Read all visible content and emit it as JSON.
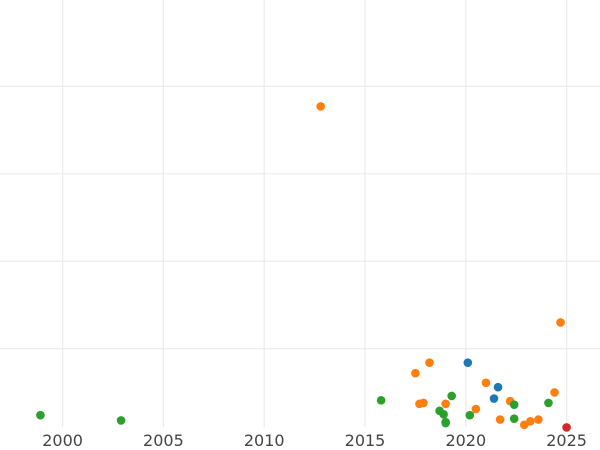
{
  "chart_data": {
    "type": "scatter",
    "title": "",
    "xlabel": "",
    "ylabel": "",
    "grid": true,
    "legend": "none",
    "xlim": [
      1997,
      2026.4
    ],
    "ylim": [
      -0.1,
      4.7
    ],
    "x_ticks": [
      2000,
      2005,
      2010,
      2015,
      2020,
      2025
    ],
    "x_tick_labels": [
      "2000",
      "2005",
      "2010",
      "2015",
      "2020",
      "2025"
    ],
    "y_grid_values": [
      0.8,
      1.8,
      2.8,
      3.8
    ],
    "series": [
      {
        "color": "#ff7f0e",
        "points": [
          {
            "x": 2012.8,
            "y": 3.57
          },
          {
            "x": 2017.5,
            "y": 0.52
          },
          {
            "x": 2018.2,
            "y": 0.64
          },
          {
            "x": 2017.7,
            "y": 0.17
          },
          {
            "x": 2017.9,
            "y": 0.18
          },
          {
            "x": 2019.0,
            "y": 0.17
          },
          {
            "x": 2020.5,
            "y": 0.11
          },
          {
            "x": 2021.0,
            "y": 0.41
          },
          {
            "x": 2021.7,
            "y": -0.01
          },
          {
            "x": 2022.2,
            "y": 0.2
          },
          {
            "x": 2022.9,
            "y": -0.07
          },
          {
            "x": 2023.2,
            "y": -0.03
          },
          {
            "x": 2023.6,
            "y": -0.01
          },
          {
            "x": 2024.4,
            "y": 0.3
          },
          {
            "x": 2024.7,
            "y": 1.1
          }
        ]
      },
      {
        "color": "#2ca02c",
        "points": [
          {
            "x": 1998.9,
            "y": 0.04
          },
          {
            "x": 2002.9,
            "y": -0.02
          },
          {
            "x": 2015.8,
            "y": 0.21
          },
          {
            "x": 2018.7,
            "y": 0.09
          },
          {
            "x": 2018.9,
            "y": 0.05
          },
          {
            "x": 2019.0,
            "y": -0.05
          },
          {
            "x": 2019.0,
            "y": -0.04
          },
          {
            "x": 2019.3,
            "y": 0.26
          },
          {
            "x": 2020.2,
            "y": 0.04
          },
          {
            "x": 2022.4,
            "y": 0.16
          },
          {
            "x": 2022.4,
            "y": 0.0
          },
          {
            "x": 2024.1,
            "y": 0.18
          }
        ]
      },
      {
        "color": "#1f77b4",
        "points": [
          {
            "x": 2020.1,
            "y": 0.64
          },
          {
            "x": 2021.4,
            "y": 0.23
          },
          {
            "x": 2021.6,
            "y": 0.36
          }
        ]
      },
      {
        "color": "#d62728",
        "points": [
          {
            "x": 2025.0,
            "y": -0.1
          }
        ]
      }
    ]
  }
}
